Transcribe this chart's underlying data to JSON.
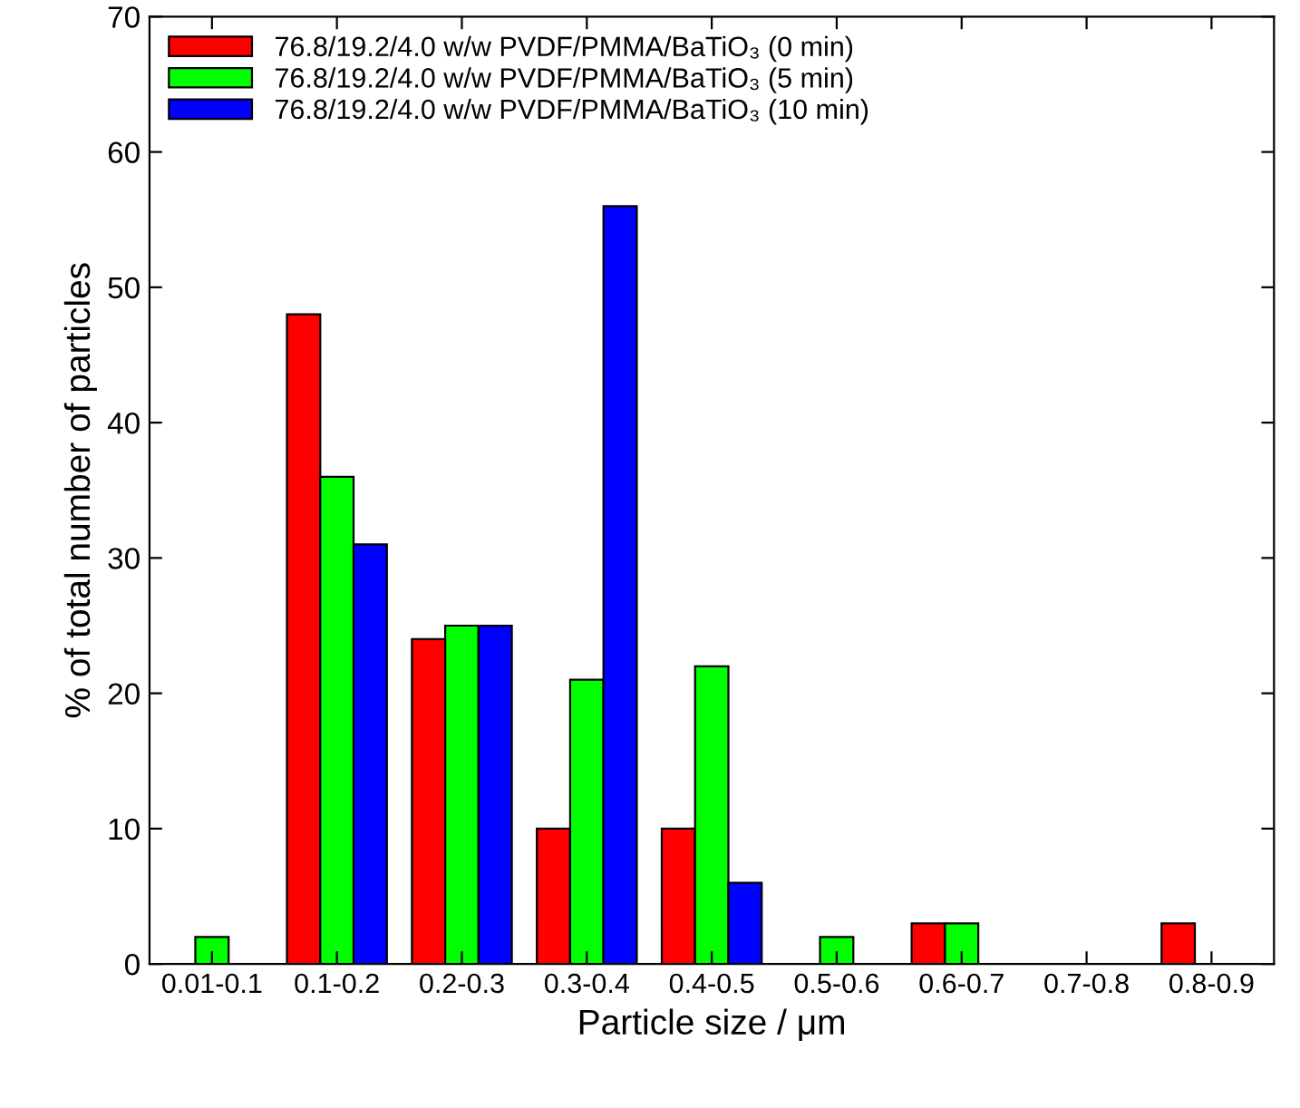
{
  "chart_data": {
    "type": "bar",
    "xlabel": "Particle size / μm",
    "ylabel": "% of total number of particles",
    "categories": [
      "0.01-0.1",
      "0.1-0.2",
      "0.2-0.3",
      "0.3-0.4",
      "0.4-0.5",
      "0.5-0.6",
      "0.6-0.7",
      "0.7-0.8",
      "0.8-0.9"
    ],
    "series": [
      {
        "name": "76.8/19.2/4.0 w/w PVDF/PMMA/BaTiO₃ (0 min)",
        "color": "#ff0000",
        "values": [
          null,
          48,
          24,
          10,
          10,
          null,
          3,
          null,
          3
        ]
      },
      {
        "name": "76.8/19.2/4.0 w/w PVDF/PMMA/BaTiO₃ (5 min)",
        "color": "#00ff00",
        "values": [
          2,
          36,
          25,
          21,
          22,
          2,
          3,
          null,
          null
        ]
      },
      {
        "name": "76.8/19.2/4.0 w/w PVDF/PMMA/BaTiO₃ (10 min)",
        "color": "#0000ff",
        "values": [
          null,
          31,
          25,
          56,
          6,
          null,
          null,
          null,
          null
        ]
      }
    ],
    "ylim": [
      0,
      70
    ],
    "yticks": [
      0,
      10,
      20,
      30,
      40,
      50,
      60,
      70
    ],
    "grid": false,
    "legend": "top left"
  }
}
